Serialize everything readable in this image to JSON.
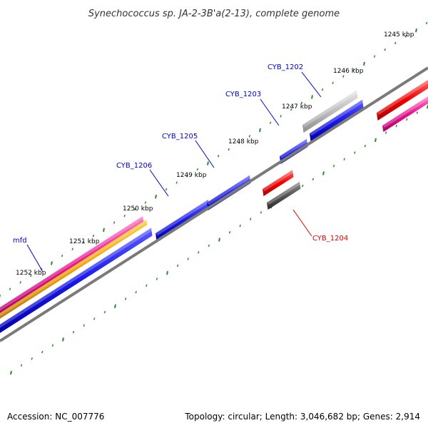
{
  "title": "Synechococcus sp. JA-2-3B'a(2-13), complete genome",
  "footer": {
    "accession": "Accession: NC_007776",
    "summary": "Topology: circular; Length: 3,046,682 bp; Genes: 2,914"
  },
  "scale_labels": [
    "1245 kbp",
    "1246 kbp",
    "1247 kbp",
    "1248 kbp",
    "1249 kbp",
    "1250 kbp",
    "1251 kbp",
    "1252 kbp"
  ],
  "gene_labels": [
    {
      "name": "CYB_1202",
      "strand": "forward"
    },
    {
      "name": "CYB_1203",
      "strand": "forward"
    },
    {
      "name": "CYB_1205",
      "strand": "forward"
    },
    {
      "name": "CYB_1206",
      "strand": "forward"
    },
    {
      "name": "mfd",
      "strand": "forward"
    },
    {
      "name": "CYB_1204",
      "strand": "reverse"
    }
  ],
  "colors": {
    "forward_cds": "#1010e0",
    "reverse_cds": "#ee0000",
    "label_forward": "#0000cc",
    "label_reverse": "#dd0000",
    "backbone": "#7a7a7a",
    "ticks": "#2d8a2d",
    "magenta_feature": "#e0108a",
    "orange_feature": "#f0a000",
    "gray_feature": "#bdbdbd",
    "dark_gray_feature": "#555555"
  }
}
